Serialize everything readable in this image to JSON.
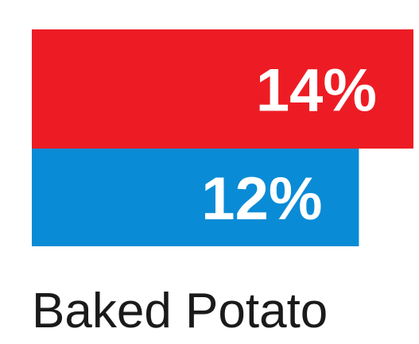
{
  "chart_data": {
    "type": "bar",
    "orientation": "horizontal",
    "categories": [
      "Baked Potato"
    ],
    "series": [
      {
        "values": [
          14
        ],
        "value_labels": [
          "14%"
        ],
        "color": "#ed1c24"
      },
      {
        "values": [
          12
        ],
        "value_labels": [
          "12%"
        ],
        "color": "#0a8bd6"
      }
    ],
    "unit": "%",
    "xlim": [
      0,
      14
    ],
    "grid": false,
    "legend": "none"
  }
}
